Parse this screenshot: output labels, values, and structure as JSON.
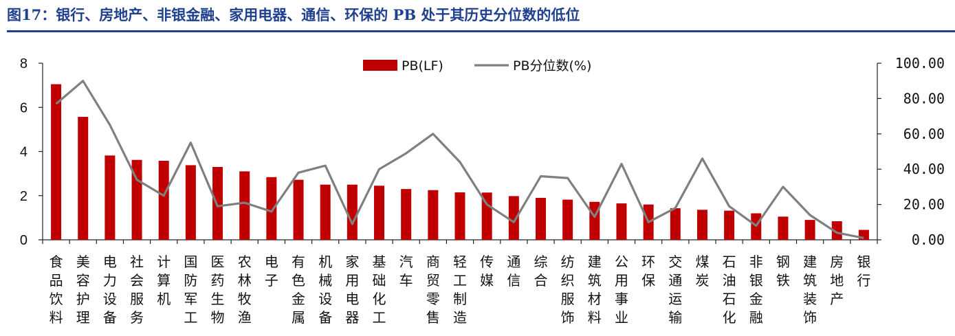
{
  "title": "图17：银行、房地产、非银金融、家用电器、通信、环保的 PB 处于其历史分位数的低位",
  "colors": {
    "title": "#1f3f8f",
    "bar": "#c00000",
    "line": "#7f7f7f",
    "axis": "#222222"
  },
  "chart_data": {
    "type": "bar+line",
    "categories": [
      [
        "食",
        "品",
        "饮",
        "料"
      ],
      [
        "美",
        "容",
        "护",
        "理"
      ],
      [
        "电",
        "力",
        "设",
        "备"
      ],
      [
        "社",
        "会",
        "服",
        "务"
      ],
      [
        "计",
        "算",
        "机"
      ],
      [
        "国",
        "防",
        "军",
        "工"
      ],
      [
        "医",
        "药",
        "生",
        "物"
      ],
      [
        "农",
        "林",
        "牧",
        "渔"
      ],
      [
        "电",
        "子"
      ],
      [
        "有",
        "色",
        "金",
        "属"
      ],
      [
        "机",
        "械",
        "设",
        "备"
      ],
      [
        "家",
        "用",
        "电",
        "器"
      ],
      [
        "基",
        "础",
        "化",
        "工"
      ],
      [
        "汽",
        "车"
      ],
      [
        "商",
        "贸",
        "零",
        "售"
      ],
      [
        "轻",
        "工",
        "制",
        "造"
      ],
      [
        "传",
        "媒"
      ],
      [
        "通",
        "信"
      ],
      [
        "综",
        "合"
      ],
      [
        "纺",
        "织",
        "服",
        "饰"
      ],
      [
        "建",
        "筑",
        "材",
        "料"
      ],
      [
        "公",
        "用",
        "事",
        "业"
      ],
      [
        "环",
        "保"
      ],
      [
        "交",
        "通",
        "运",
        "输"
      ],
      [
        "煤",
        "炭"
      ],
      [
        "石",
        "油",
        "石",
        "化"
      ],
      [
        "非",
        "银",
        "金",
        "融"
      ],
      [
        "钢",
        "铁"
      ],
      [
        "建",
        "筑",
        "装",
        "饰"
      ],
      [
        "房",
        "地",
        "产"
      ],
      [
        "银",
        "行"
      ]
    ],
    "series": [
      {
        "name": "PB(LF)",
        "type": "bar",
        "axis": "left",
        "values": [
          7.05,
          5.57,
          3.82,
          3.62,
          3.58,
          3.38,
          3.3,
          3.1,
          2.84,
          2.72,
          2.5,
          2.5,
          2.45,
          2.3,
          2.25,
          2.15,
          2.14,
          1.98,
          1.9,
          1.82,
          1.72,
          1.65,
          1.6,
          1.43,
          1.36,
          1.32,
          1.2,
          1.05,
          0.9,
          0.84,
          0.45
        ]
      },
      {
        "name": "PB分位数(%)",
        "type": "line",
        "axis": "right",
        "values": [
          77,
          90,
          65,
          34,
          25,
          55,
          19,
          21,
          16,
          38,
          42,
          9,
          40,
          49,
          60,
          44,
          20,
          10,
          36,
          35,
          13,
          43,
          10,
          18,
          46,
          19,
          8,
          30,
          14,
          4,
          1
        ]
      }
    ],
    "y_left": {
      "min": 0,
      "max": 8,
      "ticks": [
        "0",
        "2",
        "4",
        "6",
        "8"
      ]
    },
    "y_right": {
      "min": 0,
      "max": 100,
      "ticks": [
        "0.00",
        "20.00",
        "40.00",
        "60.00",
        "80.00",
        "100.00"
      ]
    },
    "legend": {
      "position": "top-center",
      "entries": [
        "PB(LF)",
        "PB分位数(%)"
      ]
    },
    "grid": false
  }
}
